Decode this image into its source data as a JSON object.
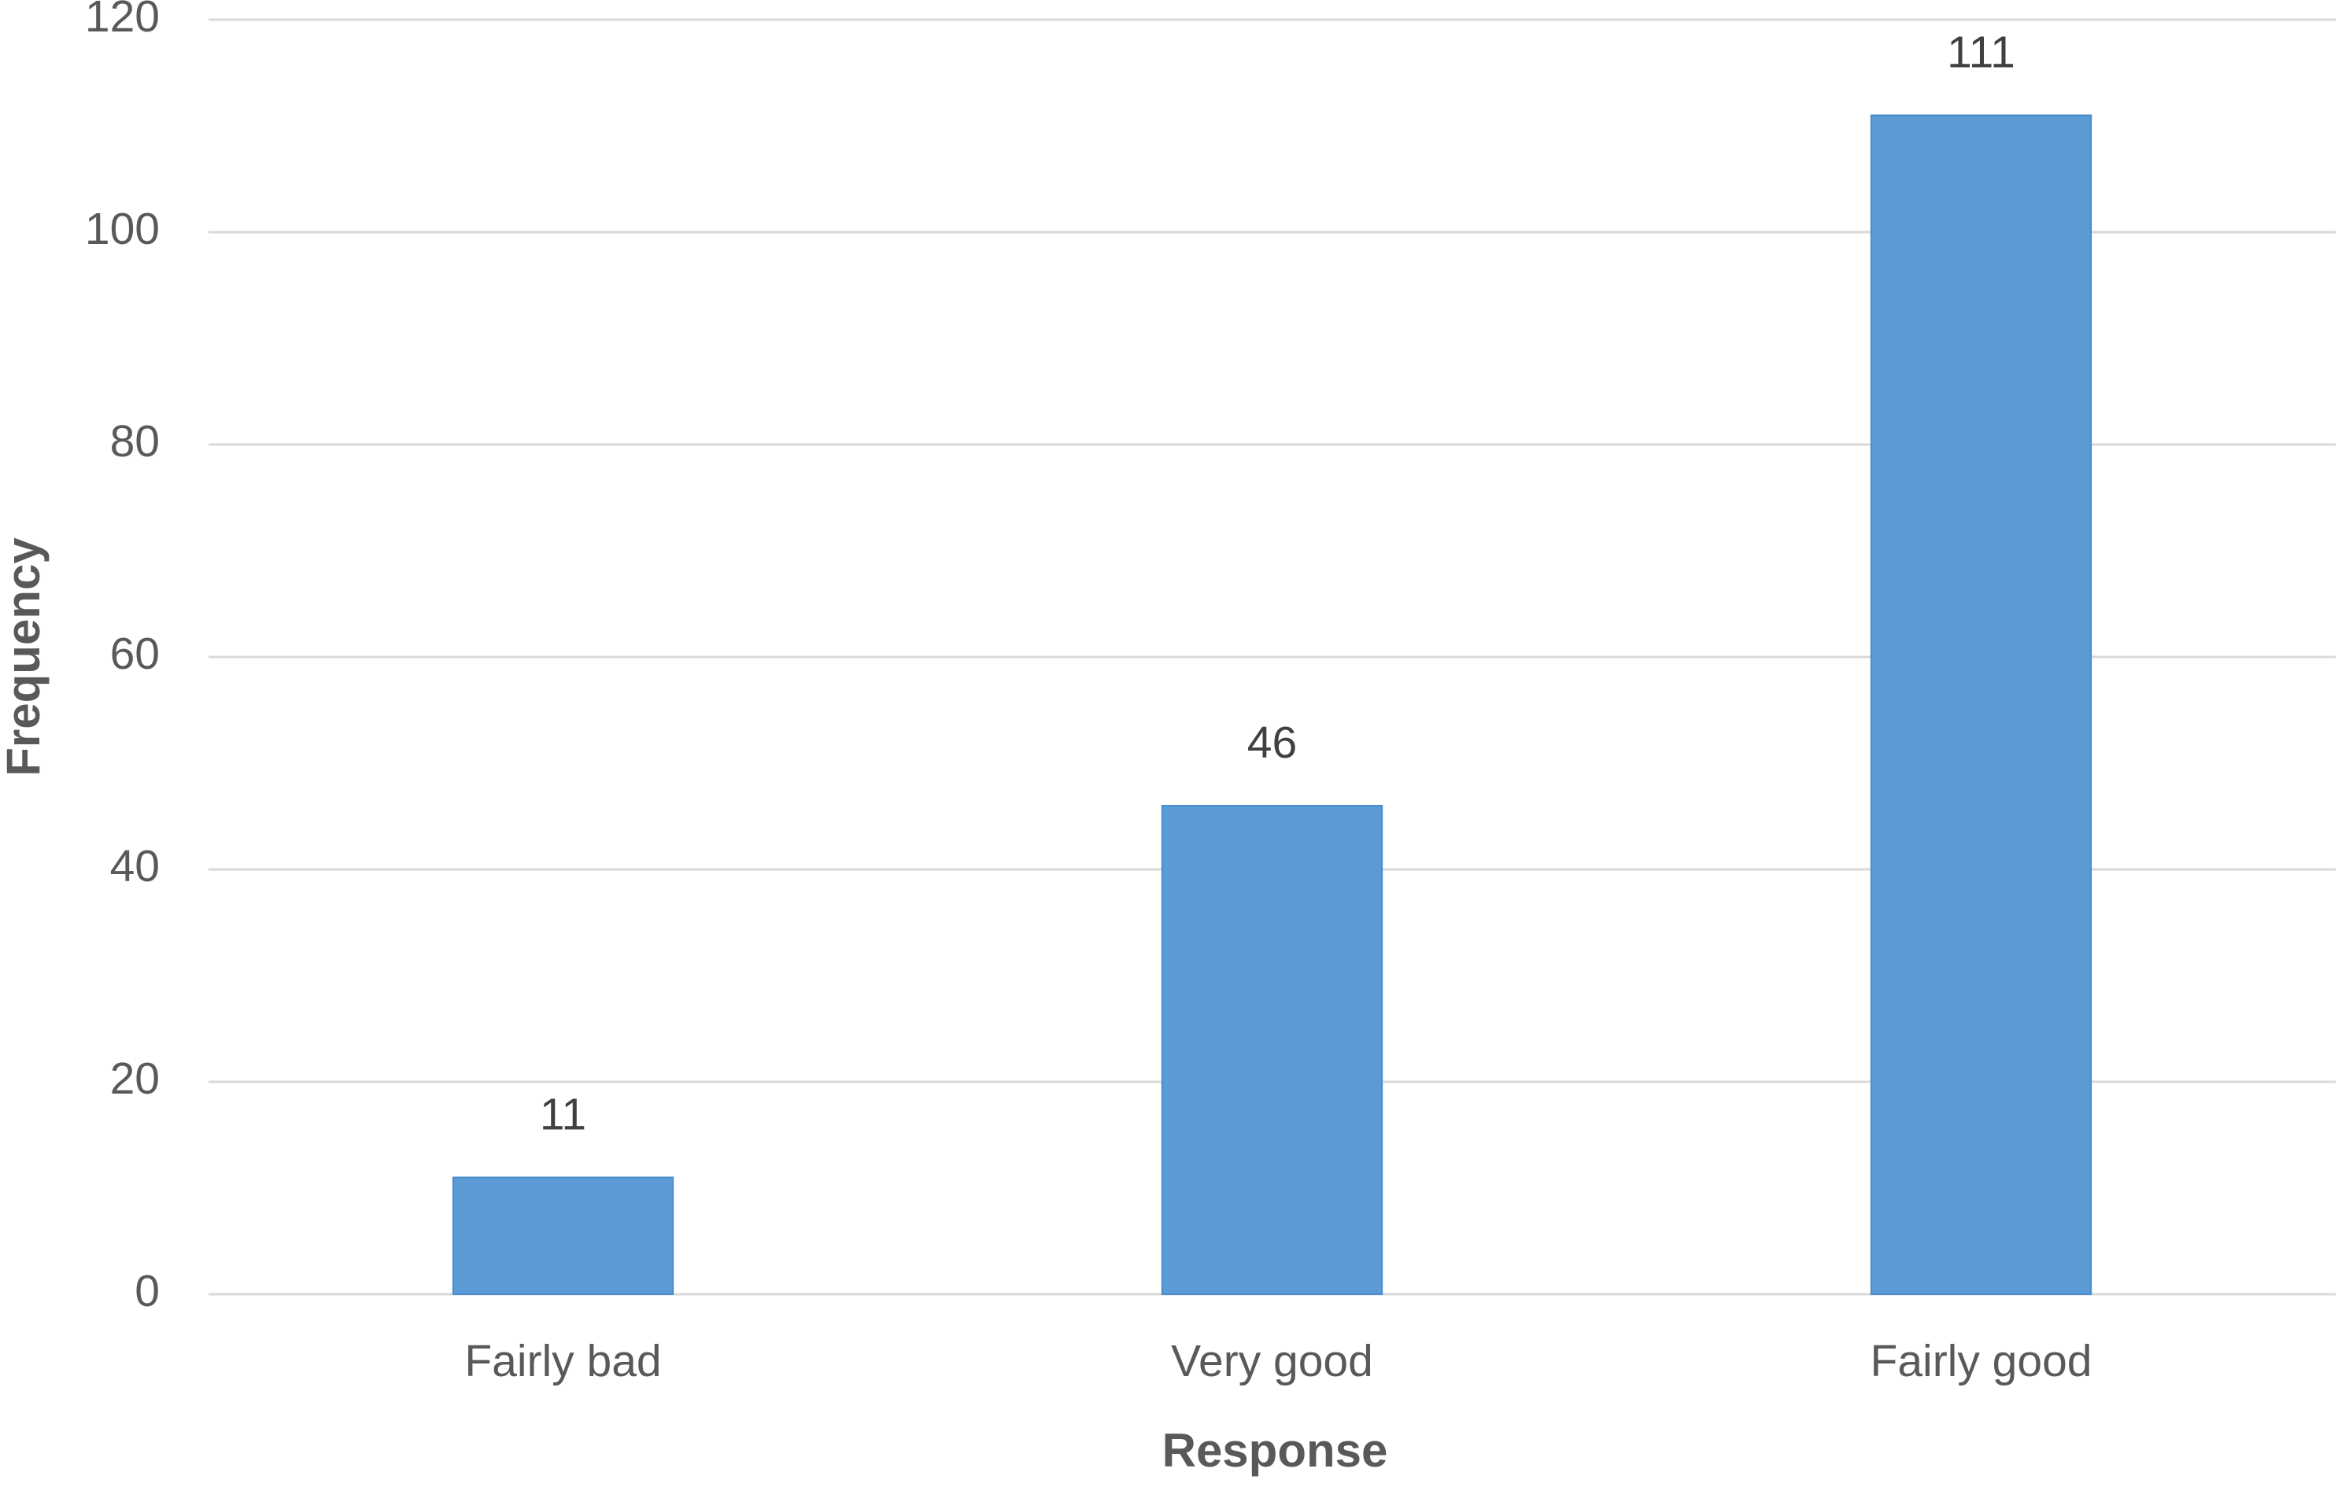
{
  "chart_data": {
    "type": "bar",
    "x_label": "Response",
    "y_label": "Frequency",
    "categories": [
      "Fairly bad",
      "Very good",
      "Fairly good"
    ],
    "values": [
      11,
      46,
      111
    ],
    "color": "#5b9bd5",
    "ylim": [
      0,
      120
    ],
    "yticks": [
      0,
      20,
      40,
      60,
      80,
      100,
      120
    ],
    "grid": true
  }
}
